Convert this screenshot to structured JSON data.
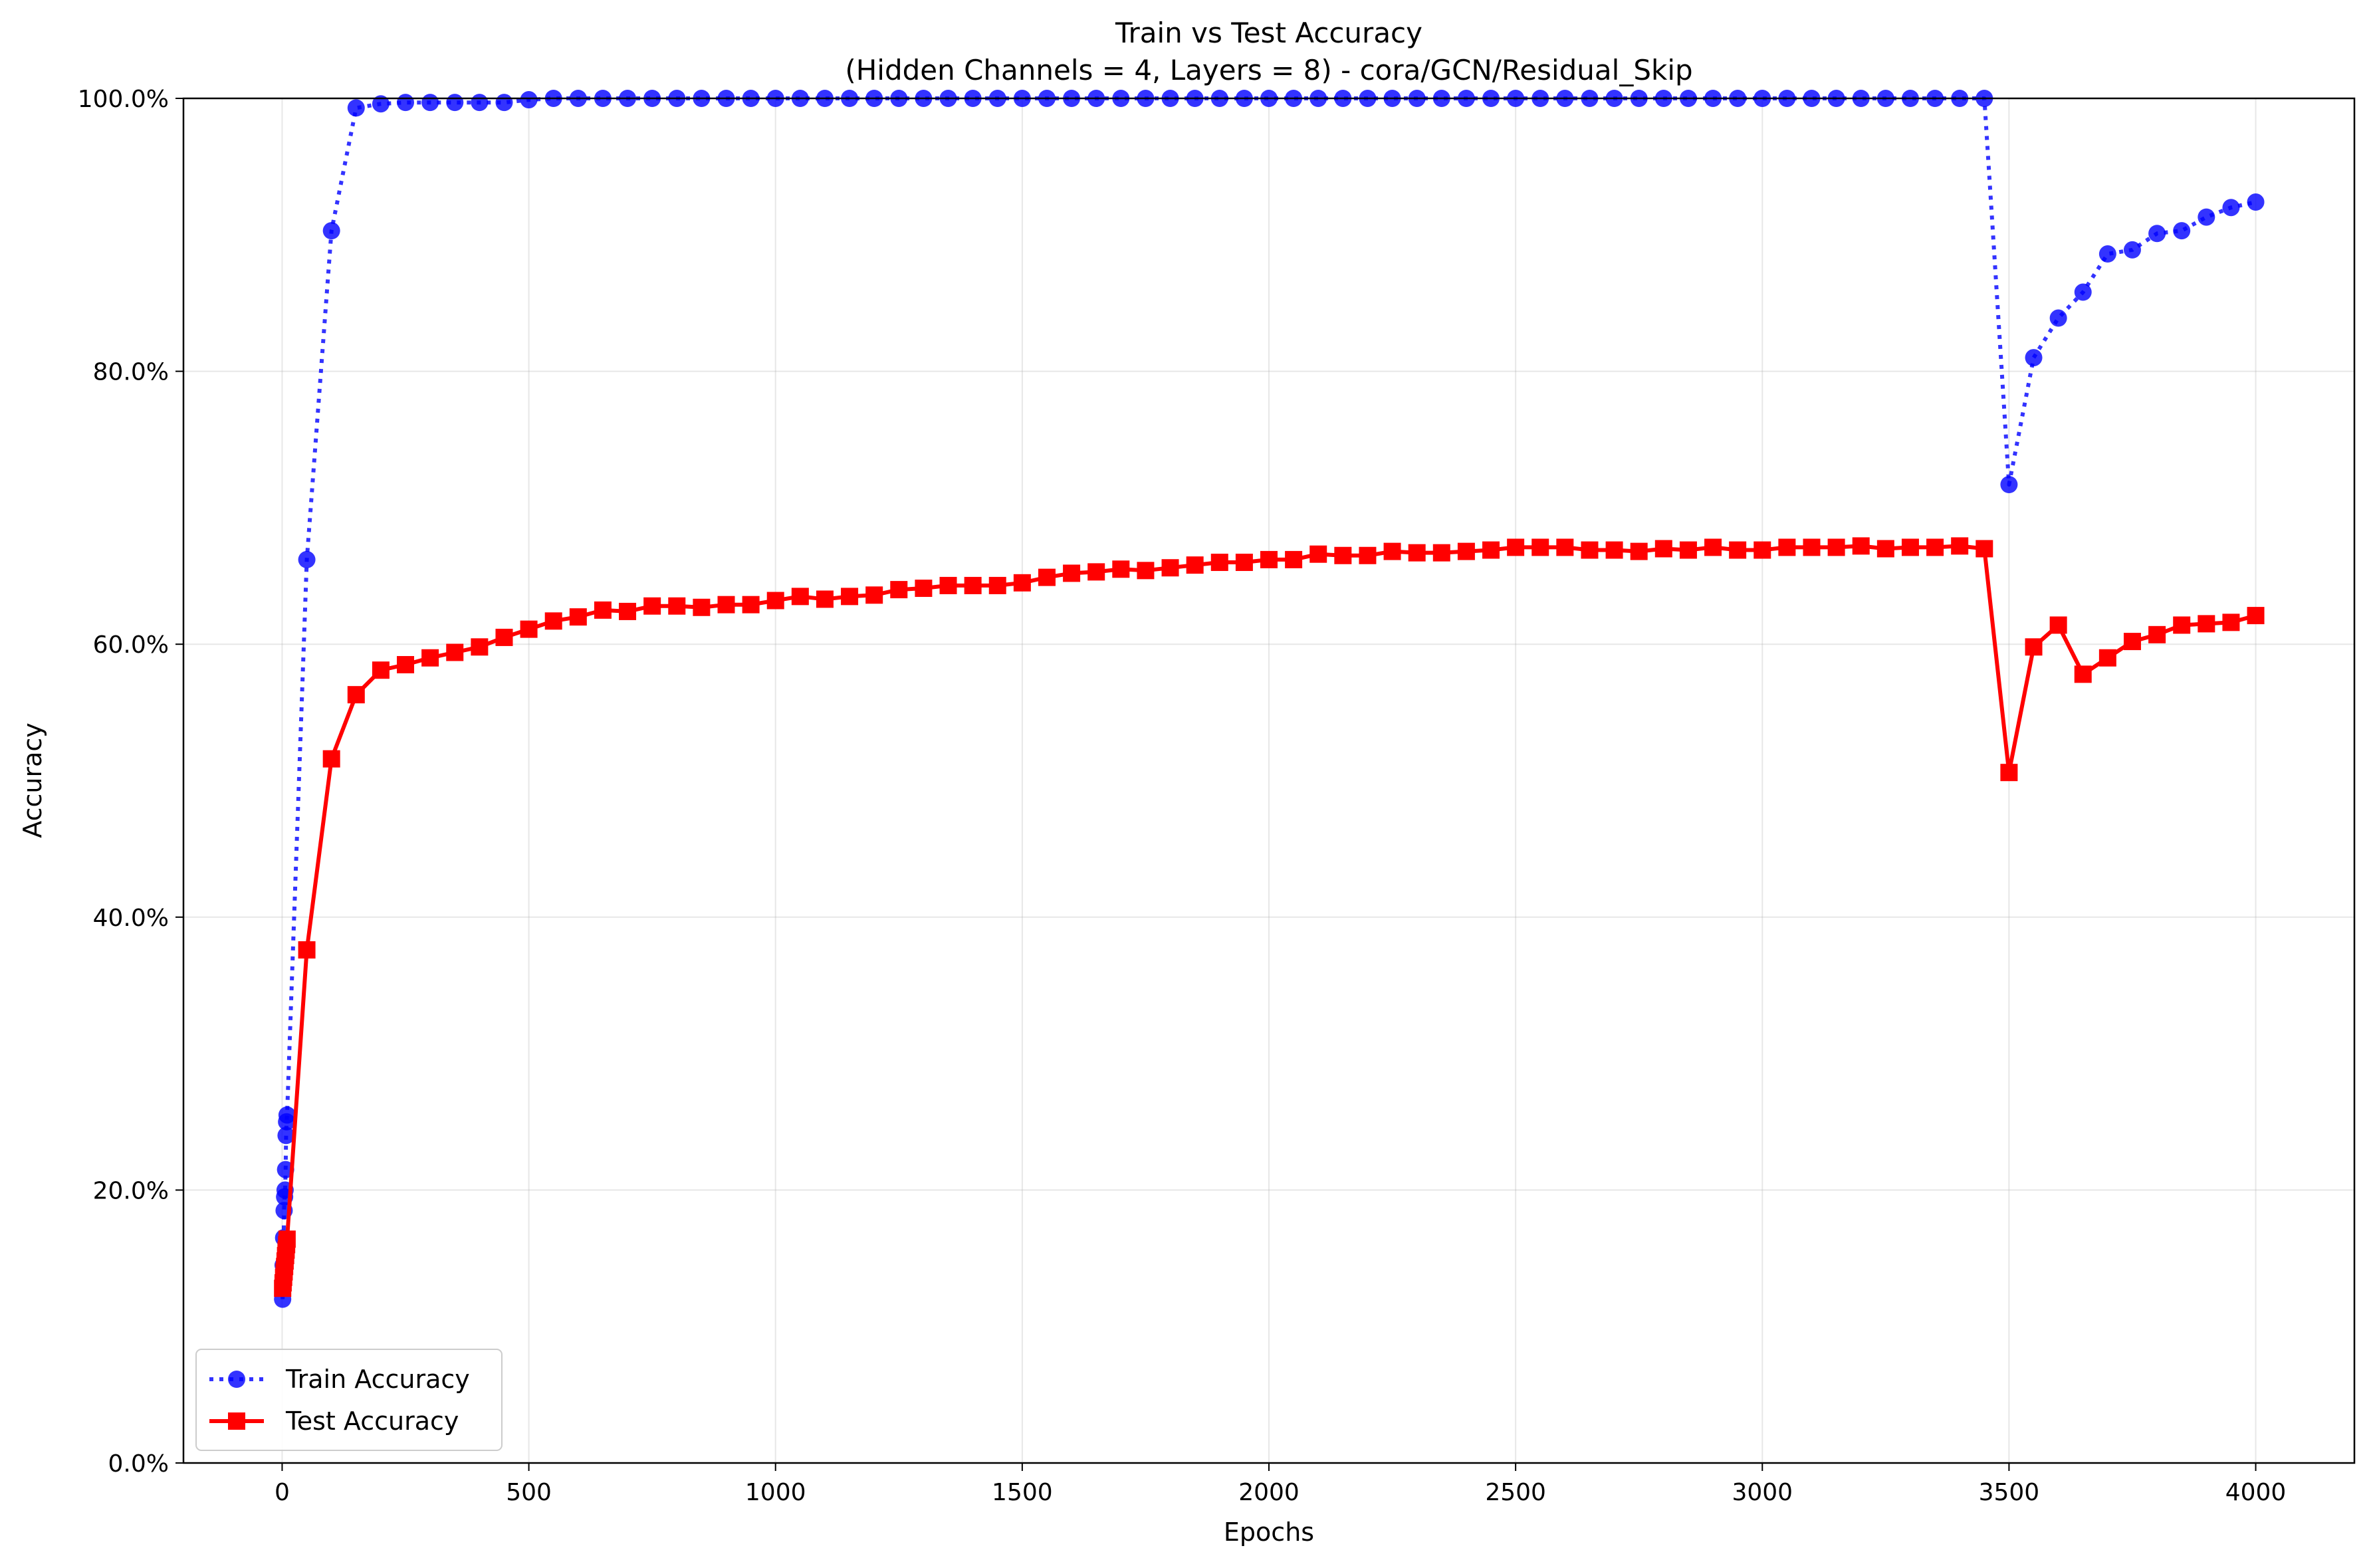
{
  "chart_data": {
    "type": "line",
    "title": "Train vs Test Accuracy",
    "subtitle": "(Hidden Channels = 4, Layers = 8) - cora/GCN/Residual_Skip",
    "xlabel": "Epochs",
    "ylabel": "Accuracy",
    "xlim": [
      -200,
      4200
    ],
    "ylim": [
      0,
      100
    ],
    "x_ticks": [
      0,
      500,
      1000,
      1500,
      2000,
      2500,
      3000,
      3500,
      4000
    ],
    "x_tick_labels": [
      "0",
      "500",
      "1000",
      "1500",
      "2000",
      "2500",
      "3000",
      "3500",
      "4000"
    ],
    "y_ticks": [
      0,
      20,
      40,
      60,
      80,
      100
    ],
    "y_tick_labels": [
      "0.0%",
      "20.0%",
      "40.0%",
      "60.0%",
      "80.0%",
      "100.0%"
    ],
    "grid": true,
    "legend_position": "lower-left",
    "series": [
      {
        "name": "Train Accuracy",
        "color": "#0000ff",
        "line_style": "dotted",
        "marker": "circle",
        "points": [
          [
            1,
            12.0
          ],
          [
            2,
            14.5
          ],
          [
            3,
            16.5
          ],
          [
            4,
            18.5
          ],
          [
            5,
            19.5
          ],
          [
            6,
            20.0
          ],
          [
            7,
            21.5
          ],
          [
            8,
            24.0
          ],
          [
            9,
            25.0
          ],
          [
            10,
            25.5
          ],
          [
            50,
            66.2
          ],
          [
            100,
            90.3
          ],
          [
            150,
            99.3
          ],
          [
            200,
            99.6
          ],
          [
            250,
            99.7
          ],
          [
            300,
            99.7
          ],
          [
            350,
            99.7
          ],
          [
            400,
            99.7
          ],
          [
            450,
            99.7
          ],
          [
            500,
            99.9
          ],
          [
            550,
            100
          ],
          [
            600,
            100
          ],
          [
            650,
            100
          ],
          [
            700,
            100
          ],
          [
            750,
            100
          ],
          [
            800,
            100
          ],
          [
            850,
            100
          ],
          [
            900,
            100
          ],
          [
            950,
            100
          ],
          [
            1000,
            100
          ],
          [
            1050,
            100
          ],
          [
            1100,
            100
          ],
          [
            1150,
            100
          ],
          [
            1200,
            100
          ],
          [
            1250,
            100
          ],
          [
            1300,
            100
          ],
          [
            1350,
            100
          ],
          [
            1400,
            100
          ],
          [
            1450,
            100
          ],
          [
            1500,
            100
          ],
          [
            1550,
            100
          ],
          [
            1600,
            100
          ],
          [
            1650,
            100
          ],
          [
            1700,
            100
          ],
          [
            1750,
            100
          ],
          [
            1800,
            100
          ],
          [
            1850,
            100
          ],
          [
            1900,
            100
          ],
          [
            1950,
            100
          ],
          [
            2000,
            100
          ],
          [
            2050,
            100
          ],
          [
            2100,
            100
          ],
          [
            2150,
            100
          ],
          [
            2200,
            100
          ],
          [
            2250,
            100
          ],
          [
            2300,
            100
          ],
          [
            2350,
            100
          ],
          [
            2400,
            100
          ],
          [
            2450,
            100
          ],
          [
            2500,
            100
          ],
          [
            2550,
            100
          ],
          [
            2600,
            100
          ],
          [
            2650,
            100
          ],
          [
            2700,
            100
          ],
          [
            2750,
            100
          ],
          [
            2800,
            100
          ],
          [
            2850,
            100
          ],
          [
            2900,
            100
          ],
          [
            2950,
            100
          ],
          [
            3000,
            100
          ],
          [
            3050,
            100
          ],
          [
            3100,
            100
          ],
          [
            3150,
            100
          ],
          [
            3200,
            100
          ],
          [
            3250,
            100
          ],
          [
            3300,
            100
          ],
          [
            3350,
            100
          ],
          [
            3400,
            100
          ],
          [
            3450,
            100
          ],
          [
            3500,
            71.7
          ],
          [
            3550,
            81.0
          ],
          [
            3600,
            83.9
          ],
          [
            3650,
            85.8
          ],
          [
            3700,
            88.6
          ],
          [
            3750,
            88.9
          ],
          [
            3800,
            90.1
          ],
          [
            3850,
            90.3
          ],
          [
            3900,
            91.3
          ],
          [
            3950,
            92.0
          ],
          [
            4000,
            92.4
          ]
        ]
      },
      {
        "name": "Test Accuracy",
        "color": "#ff0000",
        "line_style": "solid",
        "marker": "square",
        "points": [
          [
            1,
            12.8
          ],
          [
            2,
            13.2
          ],
          [
            3,
            13.6
          ],
          [
            4,
            14.0
          ],
          [
            5,
            14.4
          ],
          [
            6,
            14.8
          ],
          [
            7,
            15.2
          ],
          [
            8,
            15.6
          ],
          [
            9,
            16.0
          ],
          [
            10,
            16.4
          ],
          [
            50,
            37.6
          ],
          [
            100,
            51.6
          ],
          [
            150,
            56.3
          ],
          [
            200,
            58.1
          ],
          [
            250,
            58.5
          ],
          [
            300,
            59.0
          ],
          [
            350,
            59.4
          ],
          [
            400,
            59.8
          ],
          [
            450,
            60.5
          ],
          [
            500,
            61.1
          ],
          [
            550,
            61.7
          ],
          [
            600,
            62.0
          ],
          [
            650,
            62.5
          ],
          [
            700,
            62.4
          ],
          [
            750,
            62.8
          ],
          [
            800,
            62.8
          ],
          [
            850,
            62.7
          ],
          [
            900,
            62.9
          ],
          [
            950,
            62.9
          ],
          [
            1000,
            63.2
          ],
          [
            1050,
            63.5
          ],
          [
            1100,
            63.3
          ],
          [
            1150,
            63.5
          ],
          [
            1200,
            63.6
          ],
          [
            1250,
            64.0
          ],
          [
            1300,
            64.1
          ],
          [
            1350,
            64.3
          ],
          [
            1400,
            64.3
          ],
          [
            1450,
            64.3
          ],
          [
            1500,
            64.5
          ],
          [
            1550,
            64.9
          ],
          [
            1600,
            65.2
          ],
          [
            1650,
            65.3
          ],
          [
            1700,
            65.5
          ],
          [
            1750,
            65.4
          ],
          [
            1800,
            65.6
          ],
          [
            1850,
            65.8
          ],
          [
            1900,
            66.0
          ],
          [
            1950,
            66.0
          ],
          [
            2000,
            66.2
          ],
          [
            2050,
            66.2
          ],
          [
            2100,
            66.6
          ],
          [
            2150,
            66.5
          ],
          [
            2200,
            66.5
          ],
          [
            2250,
            66.8
          ],
          [
            2300,
            66.7
          ],
          [
            2350,
            66.7
          ],
          [
            2400,
            66.8
          ],
          [
            2450,
            66.9
          ],
          [
            2500,
            67.1
          ],
          [
            2550,
            67.1
          ],
          [
            2600,
            67.1
          ],
          [
            2650,
            66.9
          ],
          [
            2700,
            66.9
          ],
          [
            2750,
            66.8
          ],
          [
            2800,
            67.0
          ],
          [
            2850,
            66.9
          ],
          [
            2900,
            67.1
          ],
          [
            2950,
            66.9
          ],
          [
            3000,
            66.9
          ],
          [
            3050,
            67.1
          ],
          [
            3100,
            67.1
          ],
          [
            3150,
            67.1
          ],
          [
            3200,
            67.2
          ],
          [
            3250,
            67.0
          ],
          [
            3300,
            67.1
          ],
          [
            3350,
            67.1
          ],
          [
            3400,
            67.2
          ],
          [
            3450,
            67.0
          ],
          [
            3500,
            50.6
          ],
          [
            3550,
            59.8
          ],
          [
            3600,
            61.4
          ],
          [
            3650,
            57.8
          ],
          [
            3700,
            59.0
          ],
          [
            3750,
            60.2
          ],
          [
            3800,
            60.7
          ],
          [
            3850,
            61.4
          ],
          [
            3900,
            61.5
          ],
          [
            3950,
            61.6
          ],
          [
            4000,
            62.1
          ]
        ]
      }
    ]
  }
}
